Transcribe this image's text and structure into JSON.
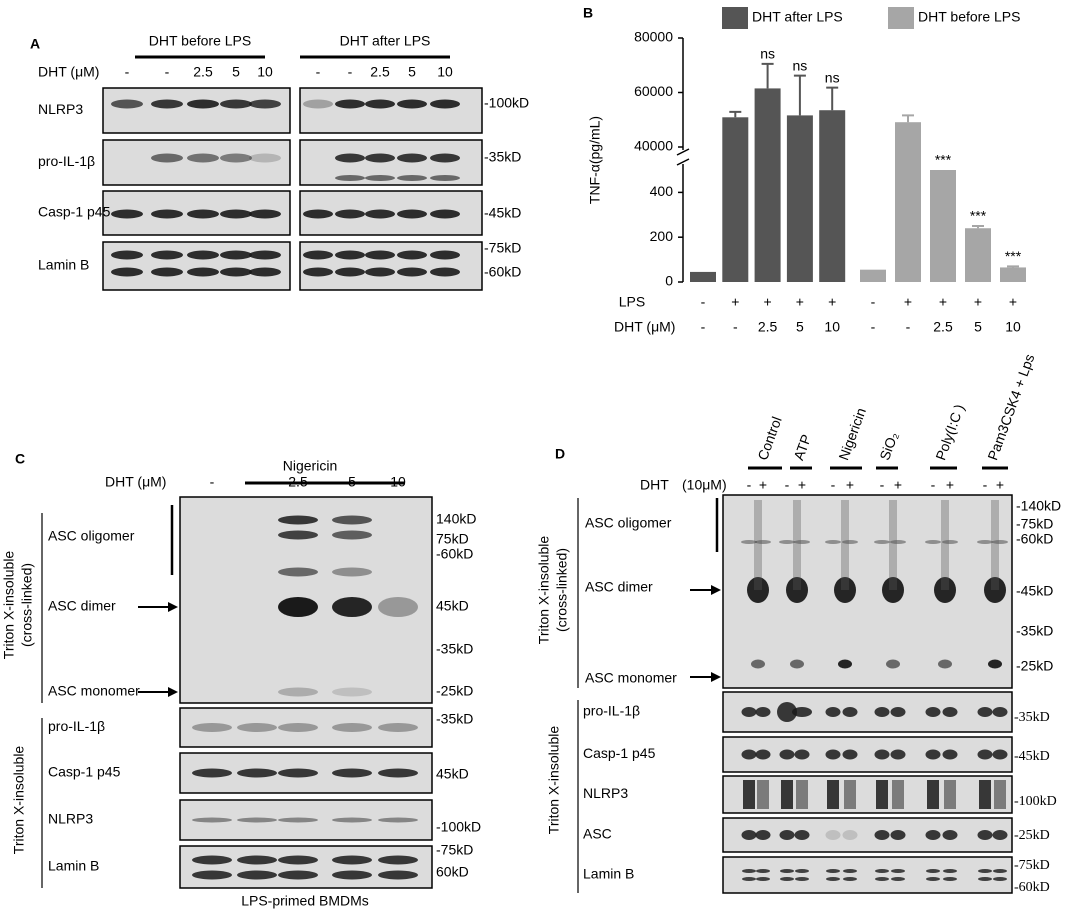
{
  "chart_data": {
    "type": "bar",
    "panel_label": "B",
    "ylabel": "TNF-α(pg/mL)",
    "categories": [
      "-",
      "-",
      "2.5",
      "5",
      "10"
    ],
    "dht_label": "DHT (μM)",
    "lps": [
      "-",
      "+",
      "+",
      "+",
      "+"
    ],
    "lps_label": "LPS",
    "series": [
      {
        "name": "DHT after LPS",
        "color": "#555555",
        "values": [
          45,
          50900,
          61500,
          51600,
          53500
        ],
        "errors": [
          null,
          2000,
          9000,
          14600,
          8300
        ],
        "annotations": [
          null,
          null,
          "ns",
          "ns",
          "ns"
        ]
      },
      {
        "name": "DHT before LPS",
        "color": "#a6a6a6",
        "values": [
          55,
          49100,
          500,
          240,
          65
        ],
        "errors": [
          null,
          2500,
          null,
          10,
          5
        ],
        "annotations": [
          null,
          null,
          "***",
          "***",
          "***"
        ]
      }
    ],
    "ylim": [
      0,
      80000
    ],
    "axis_break": [
      500,
      40000
    ],
    "yticks": [
      0,
      200,
      400,
      40000,
      60000,
      80000
    ],
    "legend": "top"
  },
  "panels": {
    "A": {
      "label": "A",
      "groups": [
        "DHT before LPS",
        "DHT after LPS"
      ],
      "dht_label": "DHT (μM)",
      "lanes": [
        "-",
        "-",
        "2.5",
        "5",
        "10"
      ],
      "rows": [
        "NLRP3",
        "pro-IL-1β",
        "Casp-1 p45",
        "Lamin B"
      ],
      "markers": [
        "-100kD",
        "-35kD",
        "-45kD",
        "-75kD",
        "-60kD"
      ]
    },
    "C": {
      "label": "C",
      "treatment": "Nigericin",
      "dht_label": "DHT (μM)",
      "lanes": [
        "-",
        "-",
        "2.5",
        "5",
        "10"
      ],
      "section": [
        "Triton X-insoluble",
        "(cross-linked)"
      ],
      "lower_section": "Triton X-insoluble",
      "rows": [
        "ASC oligomer",
        "ASC dimer",
        "ASC monomer"
      ],
      "markers": [
        "140kD",
        "75kD",
        "-60kD",
        "45kD",
        "-35kD",
        "-25kD"
      ],
      "lower_rows": [
        "pro-IL-1β",
        "Casp-1 p45",
        "NLRP3",
        "Lamin B"
      ],
      "lower_markers": [
        "-35kD",
        "45kD",
        "-100kD",
        "-75kD",
        "60kD"
      ],
      "footer": "LPS-primed BMDMs"
    },
    "D": {
      "label": "D",
      "treatments": [
        "Control",
        "ATP",
        "Nigericin",
        "SiO₂",
        "Poly(I:C )",
        "Pam3CSK4 + Lps"
      ],
      "dht_label": "DHT",
      "dht_dose": "(10μM)",
      "signs": [
        "-",
        "+"
      ],
      "section": [
        "Triton X-insoluble",
        "(cross-linked)"
      ],
      "lower_section": "Triton X-insoluble",
      "rows": [
        "ASC oligomer",
        "ASC dimer",
        "ASC monomer"
      ],
      "markers": [
        "-140kD",
        "-75kD",
        "-60kD",
        "-45kD",
        "-35kD",
        "-25kD"
      ],
      "lower_rows": [
        "pro-IL-1β",
        "Casp-1 p45",
        "NLRP3",
        "ASC",
        "Lamin B"
      ],
      "lower_markers": [
        "-35kD",
        "-45kD",
        "-100kD",
        "-25kD",
        "-75kD",
        "-60kD"
      ]
    }
  }
}
